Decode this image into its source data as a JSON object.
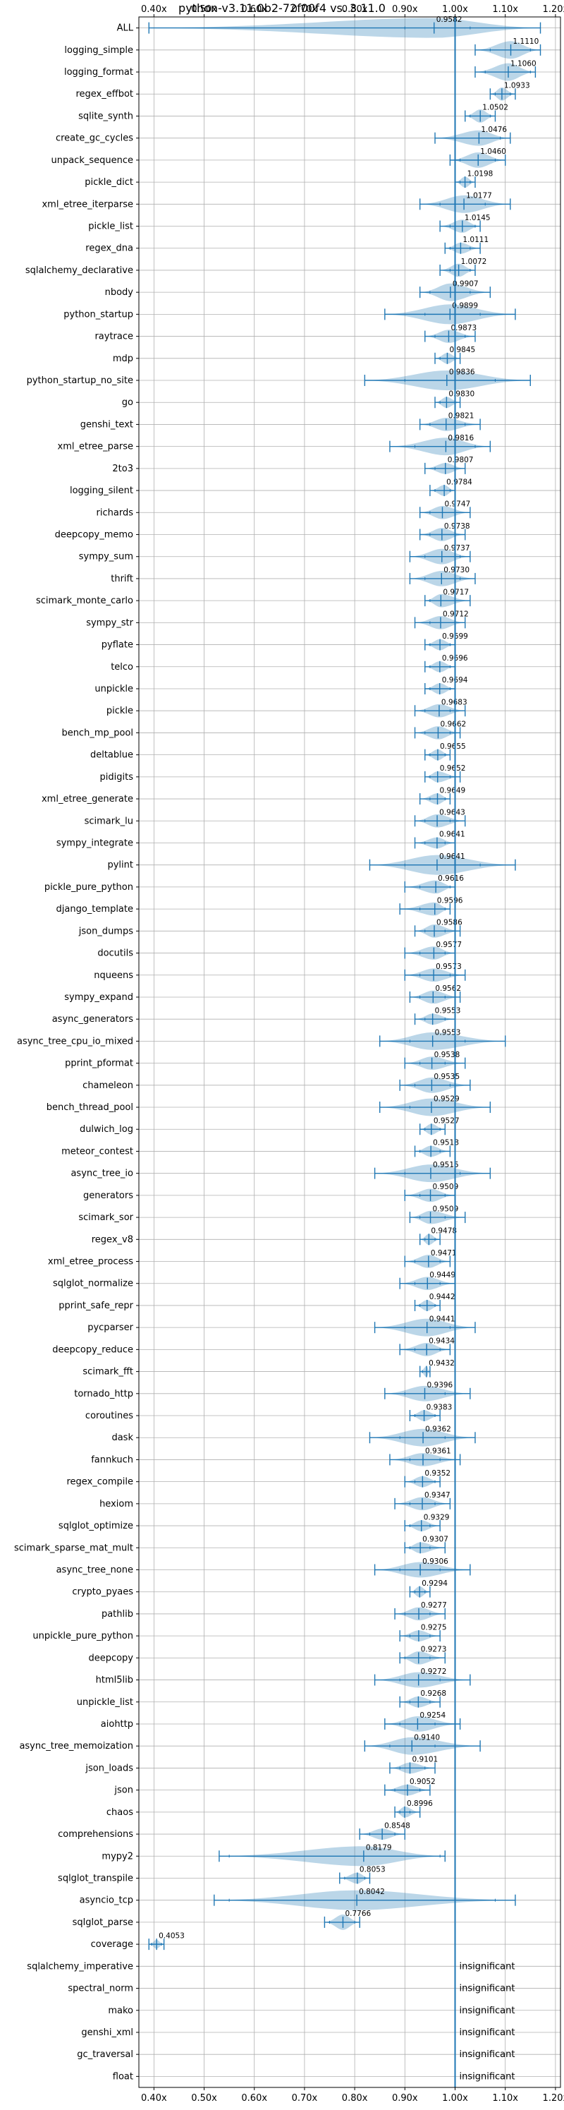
{
  "chart_data": {
    "type": "violin",
    "title": "python-v3.11.0b2-72f00f4 vs. 3.11.0",
    "xlim": [
      0.37,
      1.21
    ],
    "x_ticks": [
      0.4,
      0.5,
      0.6,
      0.7,
      0.8,
      0.9,
      1.0,
      1.1,
      1.2
    ],
    "x_tick_labels": [
      "0.40x",
      "0.50x",
      "0.60x",
      "0.70x",
      "0.80x",
      "0.90x",
      "1.00x",
      "1.10x",
      "1.20x"
    ],
    "x_tick_position": "top-and-bottom",
    "reference_line": 1.0,
    "grid": true,
    "violin_color": "#1f77b4",
    "insignificant_label": "insignificant",
    "benchmarks": [
      {
        "name": "ALL",
        "value": 0.9582,
        "label": "0.9582",
        "lo": 0.39,
        "hi": 1.17,
        "wlo": 0.9,
        "whi": 1.03,
        "w": 0.9
      },
      {
        "name": "logging_simple",
        "value": 1.111,
        "label": "1.1110",
        "lo": 1.04,
        "hi": 1.17,
        "wlo": 1.07,
        "whi": 1.15,
        "w": 0.8
      },
      {
        "name": "logging_format",
        "value": 1.106,
        "label": "1.1060",
        "lo": 1.04,
        "hi": 1.16,
        "wlo": 1.06,
        "whi": 1.15,
        "w": 0.8
      },
      {
        "name": "regex_effbot",
        "value": 1.0933,
        "label": "1.0933",
        "lo": 1.07,
        "hi": 1.12,
        "wlo": 1.08,
        "whi": 1.11,
        "w": 0.6
      },
      {
        "name": "sqlite_synth",
        "value": 1.0502,
        "label": "1.0502",
        "lo": 1.02,
        "hi": 1.08,
        "wlo": 1.03,
        "whi": 1.07,
        "w": 0.6
      },
      {
        "name": "create_gc_cycles",
        "value": 1.0476,
        "label": "1.0476",
        "lo": 0.96,
        "hi": 1.11,
        "wlo": 1.0,
        "whi": 1.09,
        "w": 0.7
      },
      {
        "name": "unpack_sequence",
        "value": 1.046,
        "label": "1.0460",
        "lo": 0.99,
        "hi": 1.1,
        "wlo": 1.01,
        "whi": 1.08,
        "w": 0.7
      },
      {
        "name": "pickle_dict",
        "value": 1.0198,
        "label": "1.0198",
        "lo": 1.0,
        "hi": 1.04,
        "wlo": 1.01,
        "whi": 1.03,
        "w": 0.5
      },
      {
        "name": "xml_etree_iterparse",
        "value": 1.0177,
        "label": "1.0177",
        "lo": 0.93,
        "hi": 1.11,
        "wlo": 0.97,
        "whi": 1.06,
        "w": 0.8
      },
      {
        "name": "pickle_list",
        "value": 1.0145,
        "label": "1.0145",
        "lo": 0.97,
        "hi": 1.05,
        "wlo": 0.99,
        "whi": 1.04,
        "w": 0.6
      },
      {
        "name": "regex_dna",
        "value": 1.0111,
        "label": "1.0111",
        "lo": 0.98,
        "hi": 1.05,
        "wlo": 0.99,
        "whi": 1.03,
        "w": 0.5
      },
      {
        "name": "sqlalchemy_declarative",
        "value": 1.0072,
        "label": "1.0072",
        "lo": 0.97,
        "hi": 1.04,
        "wlo": 0.99,
        "whi": 1.03,
        "w": 0.6
      },
      {
        "name": "nbody",
        "value": 0.9907,
        "label": "0.9907",
        "lo": 0.93,
        "hi": 1.07,
        "wlo": 0.95,
        "whi": 1.03,
        "w": 0.8
      },
      {
        "name": "python_startup",
        "value": 0.9899,
        "label": "0.9899",
        "lo": 0.86,
        "hi": 1.12,
        "wlo": 0.94,
        "whi": 1.05,
        "w": 0.9
      },
      {
        "name": "raytrace",
        "value": 0.9873,
        "label": "0.9873",
        "lo": 0.94,
        "hi": 1.04,
        "wlo": 0.96,
        "whi": 1.02,
        "w": 0.6
      },
      {
        "name": "mdp",
        "value": 0.9845,
        "label": "0.9845",
        "lo": 0.96,
        "hi": 1.01,
        "wlo": 0.97,
        "whi": 1.0,
        "w": 0.5
      },
      {
        "name": "python_startup_no_site",
        "value": 0.9836,
        "label": "0.9836",
        "lo": 0.82,
        "hi": 1.15,
        "wlo": 0.9,
        "whi": 1.08,
        "w": 0.9
      },
      {
        "name": "go",
        "value": 0.983,
        "label": "0.9830",
        "lo": 0.96,
        "hi": 1.01,
        "wlo": 0.97,
        "whi": 1.0,
        "w": 0.5
      },
      {
        "name": "genshi_text",
        "value": 0.9821,
        "label": "0.9821",
        "lo": 0.93,
        "hi": 1.05,
        "wlo": 0.95,
        "whi": 1.02,
        "w": 0.6
      },
      {
        "name": "xml_etree_parse",
        "value": 0.9816,
        "label": "0.9816",
        "lo": 0.87,
        "hi": 1.07,
        "wlo": 0.92,
        "whi": 1.04,
        "w": 0.8
      },
      {
        "name": "2to3",
        "value": 0.9807,
        "label": "0.9807",
        "lo": 0.94,
        "hi": 1.02,
        "wlo": 0.96,
        "whi": 1.0,
        "w": 0.5
      },
      {
        "name": "logging_silent",
        "value": 0.9784,
        "label": "0.9784",
        "lo": 0.95,
        "hi": 1.0,
        "wlo": 0.96,
        "whi": 0.99,
        "w": 0.5
      },
      {
        "name": "richards",
        "value": 0.9747,
        "label": "0.9747",
        "lo": 0.93,
        "hi": 1.03,
        "wlo": 0.95,
        "whi": 1.0,
        "w": 0.6
      },
      {
        "name": "deepcopy_memo",
        "value": 0.9738,
        "label": "0.9738",
        "lo": 0.93,
        "hi": 1.02,
        "wlo": 0.95,
        "whi": 1.0,
        "w": 0.6
      },
      {
        "name": "sympy_sum",
        "value": 0.9737,
        "label": "0.9737",
        "lo": 0.91,
        "hi": 1.03,
        "wlo": 0.94,
        "whi": 1.01,
        "w": 0.7
      },
      {
        "name": "thrift",
        "value": 0.973,
        "label": "0.9730",
        "lo": 0.91,
        "hi": 1.04,
        "wlo": 0.94,
        "whi": 1.01,
        "w": 0.7
      },
      {
        "name": "scimark_monte_carlo",
        "value": 0.9717,
        "label": "0.9717",
        "lo": 0.94,
        "hi": 1.03,
        "wlo": 0.95,
        "whi": 1.0,
        "w": 0.6
      },
      {
        "name": "sympy_str",
        "value": 0.9712,
        "label": "0.9712",
        "lo": 0.92,
        "hi": 1.02,
        "wlo": 0.95,
        "whi": 1.0,
        "w": 0.6
      },
      {
        "name": "pyflate",
        "value": 0.9699,
        "label": "0.9699",
        "lo": 0.94,
        "hi": 1.0,
        "wlo": 0.95,
        "whi": 0.99,
        "w": 0.5
      },
      {
        "name": "telco",
        "value": 0.9696,
        "label": "0.9696",
        "lo": 0.94,
        "hi": 1.0,
        "wlo": 0.95,
        "whi": 0.99,
        "w": 0.5
      },
      {
        "name": "unpickle",
        "value": 0.9694,
        "label": "0.9694",
        "lo": 0.94,
        "hi": 1.0,
        "wlo": 0.95,
        "whi": 0.99,
        "w": 0.5
      },
      {
        "name": "pickle",
        "value": 0.9683,
        "label": "0.9683",
        "lo": 0.92,
        "hi": 1.02,
        "wlo": 0.94,
        "whi": 0.99,
        "w": 0.6
      },
      {
        "name": "bench_mp_pool",
        "value": 0.9662,
        "label": "0.9662",
        "lo": 0.92,
        "hi": 1.01,
        "wlo": 0.94,
        "whi": 0.99,
        "w": 0.6
      },
      {
        "name": "deltablue",
        "value": 0.9655,
        "label": "0.9655",
        "lo": 0.94,
        "hi": 0.99,
        "wlo": 0.95,
        "whi": 0.98,
        "w": 0.5
      },
      {
        "name": "pidigits",
        "value": 0.9652,
        "label": "0.9652",
        "lo": 0.94,
        "hi": 1.01,
        "wlo": 0.95,
        "whi": 0.99,
        "w": 0.5
      },
      {
        "name": "xml_etree_generate",
        "value": 0.9649,
        "label": "0.9649",
        "lo": 0.93,
        "hi": 0.99,
        "wlo": 0.95,
        "whi": 0.98,
        "w": 0.5
      },
      {
        "name": "scimark_lu",
        "value": 0.9643,
        "label": "0.9643",
        "lo": 0.92,
        "hi": 1.02,
        "wlo": 0.94,
        "whi": 0.99,
        "w": 0.6
      },
      {
        "name": "sympy_integrate",
        "value": 0.9641,
        "label": "0.9641",
        "lo": 0.92,
        "hi": 1.0,
        "wlo": 0.94,
        "whi": 0.98,
        "w": 0.5
      },
      {
        "name": "pylint",
        "value": 0.9641,
        "label": "0.9641",
        "lo": 0.83,
        "hi": 1.12,
        "wlo": 0.9,
        "whi": 1.05,
        "w": 0.9
      },
      {
        "name": "pickle_pure_python",
        "value": 0.9616,
        "label": "0.9616",
        "lo": 0.9,
        "hi": 1.0,
        "wlo": 0.93,
        "whi": 0.99,
        "w": 0.6
      },
      {
        "name": "django_template",
        "value": 0.9596,
        "label": "0.9596",
        "lo": 0.89,
        "hi": 0.99,
        "wlo": 0.93,
        "whi": 0.98,
        "w": 0.6
      },
      {
        "name": "json_dumps",
        "value": 0.9586,
        "label": "0.9586",
        "lo": 0.92,
        "hi": 1.01,
        "wlo": 0.94,
        "whi": 0.98,
        "w": 0.6
      },
      {
        "name": "docutils",
        "value": 0.9577,
        "label": "0.9577",
        "lo": 0.9,
        "hi": 1.0,
        "wlo": 0.93,
        "whi": 0.98,
        "w": 0.6
      },
      {
        "name": "nqueens",
        "value": 0.9573,
        "label": "0.9573",
        "lo": 0.9,
        "hi": 1.02,
        "wlo": 0.93,
        "whi": 0.99,
        "w": 0.6
      },
      {
        "name": "sympy_expand",
        "value": 0.9562,
        "label": "0.9562",
        "lo": 0.91,
        "hi": 1.01,
        "wlo": 0.93,
        "whi": 0.98,
        "w": 0.6
      },
      {
        "name": "async_generators",
        "value": 0.9553,
        "label": "0.9553",
        "lo": 0.92,
        "hi": 1.0,
        "wlo": 0.94,
        "whi": 0.98,
        "w": 0.5
      },
      {
        "name": "async_tree_cpu_io_mixed",
        "value": 0.9553,
        "label": "0.9553",
        "lo": 0.85,
        "hi": 1.1,
        "wlo": 0.91,
        "whi": 1.02,
        "w": 0.8
      },
      {
        "name": "pprint_pformat",
        "value": 0.9538,
        "label": "0.9538",
        "lo": 0.9,
        "hi": 1.02,
        "wlo": 0.93,
        "whi": 0.98,
        "w": 0.6
      },
      {
        "name": "chameleon",
        "value": 0.9535,
        "label": "0.9535",
        "lo": 0.89,
        "hi": 1.03,
        "wlo": 0.92,
        "whi": 0.99,
        "w": 0.7
      },
      {
        "name": "bench_thread_pool",
        "value": 0.9529,
        "label": "0.9529",
        "lo": 0.85,
        "hi": 1.07,
        "wlo": 0.91,
        "whi": 1.0,
        "w": 0.8
      },
      {
        "name": "dulwich_log",
        "value": 0.9527,
        "label": "0.9527",
        "lo": 0.93,
        "hi": 0.98,
        "wlo": 0.94,
        "whi": 0.97,
        "w": 0.5
      },
      {
        "name": "meteor_contest",
        "value": 0.9518,
        "label": "0.9518",
        "lo": 0.92,
        "hi": 0.99,
        "wlo": 0.93,
        "whi": 0.97,
        "w": 0.5
      },
      {
        "name": "async_tree_io",
        "value": 0.9515,
        "label": "0.9515",
        "lo": 0.84,
        "hi": 1.07,
        "wlo": 0.9,
        "whi": 1.01,
        "w": 0.8
      },
      {
        "name": "generators",
        "value": 0.9509,
        "label": "0.9509",
        "lo": 0.9,
        "hi": 1.0,
        "wlo": 0.93,
        "whi": 0.98,
        "w": 0.6
      },
      {
        "name": "scimark_sor",
        "value": 0.9509,
        "label": "0.9509",
        "lo": 0.91,
        "hi": 1.02,
        "wlo": 0.93,
        "whi": 0.98,
        "w": 0.6
      },
      {
        "name": "regex_v8",
        "value": 0.9478,
        "label": "0.9478",
        "lo": 0.93,
        "hi": 0.97,
        "wlo": 0.94,
        "whi": 0.96,
        "w": 0.5
      },
      {
        "name": "xml_etree_process",
        "value": 0.9471,
        "label": "0.9471",
        "lo": 0.9,
        "hi": 0.99,
        "wlo": 0.92,
        "whi": 0.97,
        "w": 0.6
      },
      {
        "name": "sqlglot_normalize",
        "value": 0.9449,
        "label": "0.9449",
        "lo": 0.89,
        "hi": 1.0,
        "wlo": 0.92,
        "whi": 0.97,
        "w": 0.6
      },
      {
        "name": "pprint_safe_repr",
        "value": 0.9442,
        "label": "0.9442",
        "lo": 0.92,
        "hi": 0.97,
        "wlo": 0.93,
        "whi": 0.96,
        "w": 0.5
      },
      {
        "name": "pycparser",
        "value": 0.9441,
        "label": "0.9441",
        "lo": 0.84,
        "hi": 1.04,
        "wlo": 0.9,
        "whi": 0.99,
        "w": 0.8
      },
      {
        "name": "deepcopy_reduce",
        "value": 0.9434,
        "label": "0.9434",
        "lo": 0.89,
        "hi": 0.99,
        "wlo": 0.92,
        "whi": 0.97,
        "w": 0.6
      },
      {
        "name": "scimark_fft",
        "value": 0.9432,
        "label": "0.9432",
        "lo": 0.93,
        "hi": 0.95,
        "wlo": 0.935,
        "whi": 0.95,
        "w": 0.5
      },
      {
        "name": "tornado_http",
        "value": 0.9396,
        "label": "0.9396",
        "lo": 0.86,
        "hi": 1.03,
        "wlo": 0.9,
        "whi": 0.98,
        "w": 0.7
      },
      {
        "name": "coroutines",
        "value": 0.9383,
        "label": "0.9383",
        "lo": 0.91,
        "hi": 0.97,
        "wlo": 0.92,
        "whi": 0.96,
        "w": 0.5
      },
      {
        "name": "dask",
        "value": 0.9362,
        "label": "0.9362",
        "lo": 0.83,
        "hi": 1.04,
        "wlo": 0.89,
        "whi": 0.98,
        "w": 0.8
      },
      {
        "name": "fannkuch",
        "value": 0.9361,
        "label": "0.9361",
        "lo": 0.87,
        "hi": 1.01,
        "wlo": 0.91,
        "whi": 0.97,
        "w": 0.6
      },
      {
        "name": "regex_compile",
        "value": 0.9352,
        "label": "0.9352",
        "lo": 0.9,
        "hi": 0.97,
        "wlo": 0.92,
        "whi": 0.96,
        "w": 0.5
      },
      {
        "name": "hexiom",
        "value": 0.9347,
        "label": "0.9347",
        "lo": 0.88,
        "hi": 0.99,
        "wlo": 0.91,
        "whi": 0.96,
        "w": 0.6
      },
      {
        "name": "sqlglot_optimize",
        "value": 0.9329,
        "label": "0.9329",
        "lo": 0.9,
        "hi": 0.97,
        "wlo": 0.91,
        "whi": 0.95,
        "w": 0.5
      },
      {
        "name": "scimark_sparse_mat_mult",
        "value": 0.9307,
        "label": "0.9307",
        "lo": 0.9,
        "hi": 0.98,
        "wlo": 0.91,
        "whi": 0.95,
        "w": 0.5
      },
      {
        "name": "async_tree_none",
        "value": 0.9306,
        "label": "0.9306",
        "lo": 0.84,
        "hi": 1.03,
        "wlo": 0.89,
        "whi": 0.97,
        "w": 0.7
      },
      {
        "name": "crypto_pyaes",
        "value": 0.9294,
        "label": "0.9294",
        "lo": 0.91,
        "hi": 0.95,
        "wlo": 0.92,
        "whi": 0.94,
        "w": 0.5
      },
      {
        "name": "pathlib",
        "value": 0.9277,
        "label": "0.9277",
        "lo": 0.88,
        "hi": 0.98,
        "wlo": 0.9,
        "whi": 0.95,
        "w": 0.6
      },
      {
        "name": "unpickle_pure_python",
        "value": 0.9275,
        "label": "0.9275",
        "lo": 0.89,
        "hi": 0.97,
        "wlo": 0.91,
        "whi": 0.95,
        "w": 0.5
      },
      {
        "name": "deepcopy",
        "value": 0.9273,
        "label": "0.9273",
        "lo": 0.89,
        "hi": 0.98,
        "wlo": 0.9,
        "whi": 0.95,
        "w": 0.6
      },
      {
        "name": "html5lib",
        "value": 0.9272,
        "label": "0.9272",
        "lo": 0.84,
        "hi": 1.03,
        "wlo": 0.89,
        "whi": 0.97,
        "w": 0.7
      },
      {
        "name": "unpickle_list",
        "value": 0.9268,
        "label": "0.9268",
        "lo": 0.89,
        "hi": 0.97,
        "wlo": 0.91,
        "whi": 0.95,
        "w": 0.5
      },
      {
        "name": "aiohttp",
        "value": 0.9254,
        "label": "0.9254",
        "lo": 0.86,
        "hi": 1.01,
        "wlo": 0.89,
        "whi": 0.96,
        "w": 0.7
      },
      {
        "name": "async_tree_memoization",
        "value": 0.914,
        "label": "0.9140",
        "lo": 0.82,
        "hi": 1.05,
        "wlo": 0.87,
        "whi": 0.96,
        "w": 0.8
      },
      {
        "name": "json_loads",
        "value": 0.9101,
        "label": "0.9101",
        "lo": 0.87,
        "hi": 0.96,
        "wlo": 0.89,
        "whi": 0.94,
        "w": 0.5
      },
      {
        "name": "json",
        "value": 0.9052,
        "label": "0.9052",
        "lo": 0.86,
        "hi": 0.95,
        "wlo": 0.88,
        "whi": 0.93,
        "w": 0.5
      },
      {
        "name": "chaos",
        "value": 0.8996,
        "label": "0.8996",
        "lo": 0.88,
        "hi": 0.93,
        "wlo": 0.89,
        "whi": 0.91,
        "w": 0.5
      },
      {
        "name": "comprehensions",
        "value": 0.8548,
        "label": "0.8548",
        "lo": 0.81,
        "hi": 0.9,
        "wlo": 0.83,
        "whi": 0.88,
        "w": 0.5
      },
      {
        "name": "mypy2",
        "value": 0.8179,
        "label": "0.8179",
        "lo": 0.53,
        "hi": 0.98,
        "wlo": 0.55,
        "whi": 0.97,
        "w": 0.9
      },
      {
        "name": "sqlglot_transpile",
        "value": 0.8053,
        "label": "0.8053",
        "lo": 0.77,
        "hi": 0.83,
        "wlo": 0.78,
        "whi": 0.82,
        "w": 0.5
      },
      {
        "name": "asyncio_tcp",
        "value": 0.8042,
        "label": "0.8042",
        "lo": 0.52,
        "hi": 1.12,
        "wlo": 0.55,
        "whi": 1.08,
        "w": 0.9
      },
      {
        "name": "sqlglot_parse",
        "value": 0.7766,
        "label": "0.7766",
        "lo": 0.74,
        "hi": 0.81,
        "wlo": 0.75,
        "whi": 0.8,
        "w": 0.7
      },
      {
        "name": "coverage",
        "value": 0.4053,
        "label": "0.4053",
        "lo": 0.39,
        "hi": 0.42,
        "wlo": 0.395,
        "whi": 0.415,
        "w": 0.4
      },
      {
        "name": "sqlalchemy_imperative",
        "insignificant": true
      },
      {
        "name": "spectral_norm",
        "insignificant": true
      },
      {
        "name": "mako",
        "insignificant": true
      },
      {
        "name": "genshi_xml",
        "insignificant": true
      },
      {
        "name": "gc_traversal",
        "insignificant": true
      },
      {
        "name": "float",
        "insignificant": true
      }
    ]
  }
}
